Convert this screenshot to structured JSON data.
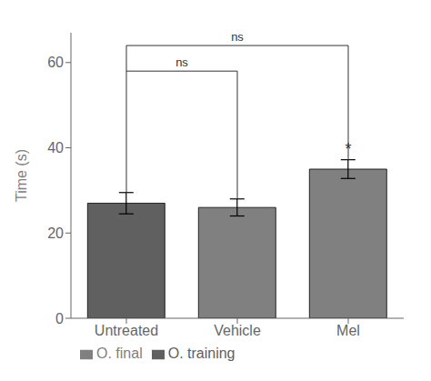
{
  "chart_data": {
    "type": "bar",
    "categories": [
      "Untreated",
      "Vehicle",
      "Mel"
    ],
    "series": [
      {
        "name": "O. training",
        "color": "#606060",
        "values": [
          27.0,
          null,
          null
        ],
        "errors": [
          2.5,
          null,
          null
        ]
      },
      {
        "name": "O. final",
        "color": "#808080",
        "values": [
          null,
          26.0,
          35.0
        ],
        "errors": [
          null,
          2.0,
          2.2
        ]
      }
    ],
    "ylabel": "Time (s)",
    "ylim": [
      0,
      67
    ],
    "yticks": [
      0,
      20,
      40,
      60
    ],
    "grid": false,
    "legend": "bottom",
    "annotations": [
      {
        "type": "bracket",
        "text": "ns",
        "from": "Untreated",
        "to": "Vehicle",
        "y": 58
      },
      {
        "type": "bracket",
        "text": "ns",
        "from": "Untreated",
        "to": "Mel",
        "y": 64
      },
      {
        "text": "*",
        "x": "Mel",
        "y": 38.5
      }
    ]
  }
}
